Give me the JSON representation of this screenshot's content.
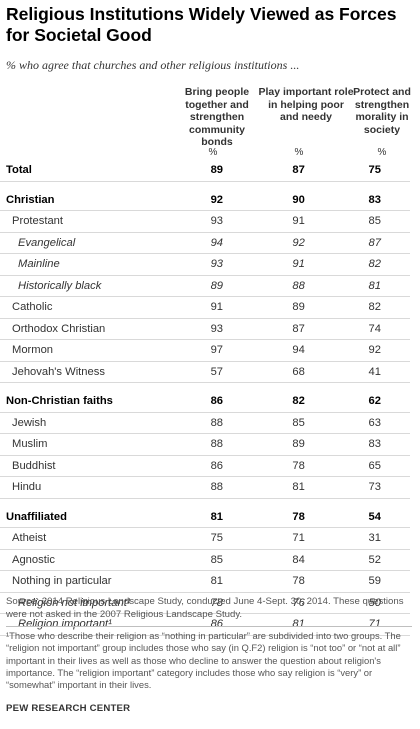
{
  "chart_data": {
    "type": "table",
    "title": "Religious Institutions Widely Viewed as Forces for Societal Good",
    "subtitle": "% who agree that churches and other religious institutions ...",
    "columns": [
      "Bring people together and strengthen community bonds",
      "Play important role in helping poor and needy",
      "Protect and strengthen morality in society"
    ],
    "unit_label": "%",
    "rows": [
      {
        "label": "Total",
        "values": [
          "89",
          "87",
          "75"
        ]
      },
      {
        "label": "Christian",
        "values": [
          "92",
          "90",
          "83"
        ]
      },
      {
        "label": "Protestant",
        "values": [
          "93",
          "91",
          "85"
        ]
      },
      {
        "label": "Evangelical",
        "values": [
          "94",
          "92",
          "87"
        ]
      },
      {
        "label": "Mainline",
        "values": [
          "93",
          "91",
          "82"
        ]
      },
      {
        "label": "Historically black",
        "values": [
          "89",
          "88",
          "81"
        ]
      },
      {
        "label": "Catholic",
        "values": [
          "91",
          "89",
          "82"
        ]
      },
      {
        "label": "Orthodox Christian",
        "values": [
          "93",
          "87",
          "74"
        ]
      },
      {
        "label": "Mormon",
        "values": [
          "97",
          "94",
          "92"
        ]
      },
      {
        "label": "Jehovah's Witness",
        "values": [
          "57",
          "68",
          "41"
        ]
      },
      {
        "label": "Non-Christian faiths",
        "values": [
          "86",
          "82",
          "62"
        ]
      },
      {
        "label": "Jewish",
        "values": [
          "88",
          "85",
          "63"
        ]
      },
      {
        "label": "Muslim",
        "values": [
          "88",
          "89",
          "83"
        ]
      },
      {
        "label": "Buddhist",
        "values": [
          "86",
          "78",
          "65"
        ]
      },
      {
        "label": "Hindu",
        "values": [
          "88",
          "81",
          "73"
        ]
      },
      {
        "label": "Unaffiliated",
        "values": [
          "81",
          "78",
          "54"
        ]
      },
      {
        "label": "Atheist",
        "values": [
          "75",
          "71",
          "31"
        ]
      },
      {
        "label": "Agnostic",
        "values": [
          "85",
          "84",
          "52"
        ]
      },
      {
        "label": "Nothing in particular",
        "values": [
          "81",
          "78",
          "59"
        ]
      },
      {
        "label": "Religion not important¹",
        "values": [
          "78",
          "76",
          "50"
        ]
      },
      {
        "label": "Religion important¹",
        "values": [
          "86",
          "81",
          "71"
        ]
      }
    ],
    "source": "Source: 2014 Religious Landscape Study, conducted June 4-Sept. 30, 2014. These questions were not asked in the 2007 Religious Landscape Study.",
    "footnote": "¹Those who describe their religion as “nothing in particular” are subdivided into two groups. The “religion not important” group includes those who say (in Q.F2) religion is “not too” or “not at all” important in their lives as well as those who decline to answer the question about religion's importance. The “religion important” category includes those who say religion is “very” or “somewhat” important in their lives.",
    "organization": "PEW RESEARCH CENTER"
  }
}
